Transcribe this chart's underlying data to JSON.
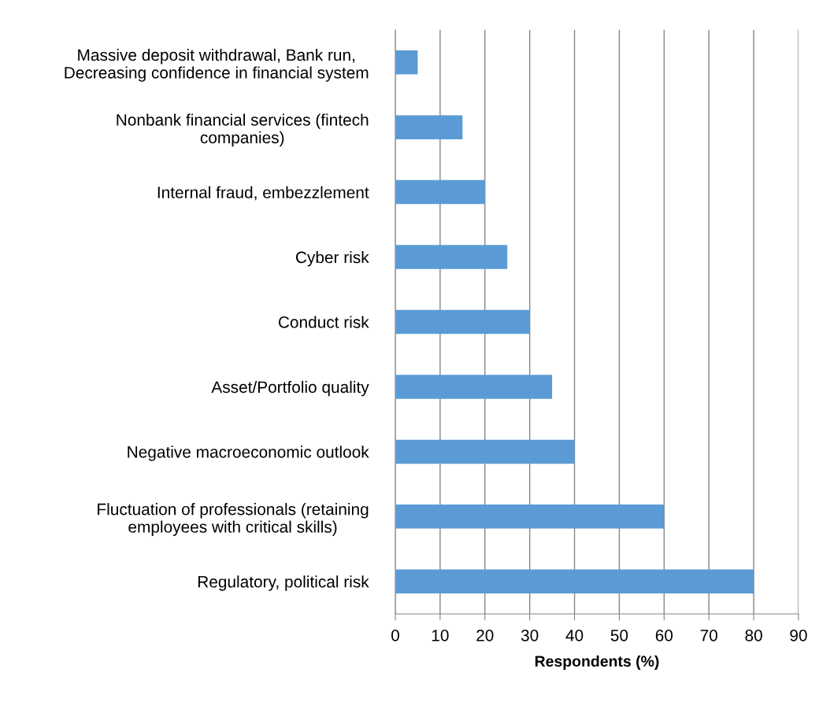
{
  "chart_data": {
    "type": "bar",
    "orientation": "horizontal",
    "xlabel": "Respondents (%)",
    "categories": [
      "Massive deposit withdrawal, Bank run,\nDecreasing confidence in financial system",
      "Nonbank financial services (fintech\ncompanies)",
      "Internal fraud, embezzlement",
      "Cyber risk",
      "Conduct risk",
      "Asset/Portfolio quality",
      "Negative macroeconomic outlook",
      "Fluctuation of professionals (retaining\nemployees with critical skills)",
      "Regulatory, political risk"
    ],
    "values": [
      5,
      15,
      20,
      25,
      30,
      35,
      40,
      60,
      80
    ],
    "color": "#5b9bd5",
    "xlim": [
      0,
      90
    ],
    "xticks": [
      0,
      10,
      20,
      30,
      40,
      50,
      60,
      70,
      80,
      90
    ],
    "grid": "x",
    "legend": false
  }
}
